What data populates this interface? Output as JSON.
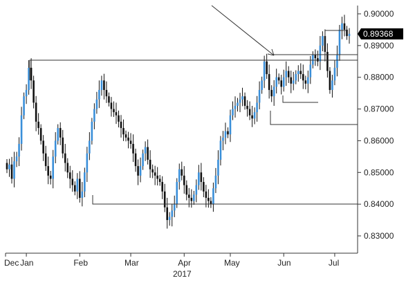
{
  "chart_data": {
    "type": "candlestick",
    "title": "",
    "xlabel": "",
    "ylabel": "",
    "year_label": "2017",
    "ylim": [
      0.827,
      0.902
    ],
    "y_ticks": [
      "0.90000",
      "0.89000",
      "0.88000",
      "0.87000",
      "0.86000",
      "0.85000",
      "0.84000",
      "0.83000"
    ],
    "y_tick_values": [
      0.9,
      0.89,
      0.88,
      0.87,
      0.86,
      0.85,
      0.84,
      0.83
    ],
    "months": [
      {
        "label": "Dec",
        "index": 0
      },
      {
        "label": "Jan",
        "index": 8
      },
      {
        "label": "Feb",
        "index": 30
      },
      {
        "label": "Mar",
        "index": 51
      },
      {
        "label": "Apr",
        "index": 73
      },
      {
        "label": "May",
        "index": 92
      },
      {
        "label": "Jun",
        "index": 114
      },
      {
        "label": "Jul",
        "index": 135
      }
    ],
    "last_price": "0.89368",
    "last_price_value": 0.89368,
    "up_color": "#3a8fd9",
    "down_color": "#111111",
    "candle_count": 142,
    "closes": [
      0.851,
      0.8525,
      0.848,
      0.8535,
      0.855,
      0.859,
      0.868,
      0.874,
      0.876,
      0.883,
      0.879,
      0.872,
      0.866,
      0.864,
      0.86,
      0.856,
      0.852,
      0.849,
      0.848,
      0.855,
      0.86,
      0.864,
      0.861,
      0.856,
      0.853,
      0.85,
      0.848,
      0.846,
      0.844,
      0.848,
      0.842,
      0.844,
      0.85,
      0.856,
      0.86,
      0.866,
      0.87,
      0.873,
      0.876,
      0.879,
      0.876,
      0.874,
      0.872,
      0.87,
      0.869,
      0.868,
      0.866,
      0.864,
      0.862,
      0.861,
      0.86,
      0.859,
      0.856,
      0.852,
      0.849,
      0.852,
      0.856,
      0.858,
      0.854,
      0.851,
      0.85,
      0.849,
      0.848,
      0.847,
      0.844,
      0.839,
      0.835,
      0.836,
      0.838,
      0.84,
      0.847,
      0.851,
      0.849,
      0.846,
      0.843,
      0.842,
      0.841,
      0.843,
      0.846,
      0.85,
      0.847,
      0.844,
      0.842,
      0.841,
      0.84,
      0.845,
      0.849,
      0.854,
      0.86,
      0.861,
      0.863,
      0.862,
      0.868,
      0.87,
      0.871,
      0.872,
      0.873,
      0.874,
      0.871,
      0.87,
      0.868,
      0.867,
      0.869,
      0.872,
      0.876,
      0.879,
      0.885,
      0.881,
      0.876,
      0.874,
      0.877,
      0.88,
      0.879,
      0.877,
      0.88,
      0.882,
      0.88,
      0.878,
      0.879,
      0.881,
      0.882,
      0.881,
      0.879,
      0.878,
      0.88,
      0.884,
      0.887,
      0.886,
      0.885,
      0.89,
      0.893,
      0.888,
      0.882,
      0.876,
      0.879,
      0.883,
      0.887,
      0.895,
      0.897,
      0.895,
      0.893,
      0.8937
    ]
  }
}
